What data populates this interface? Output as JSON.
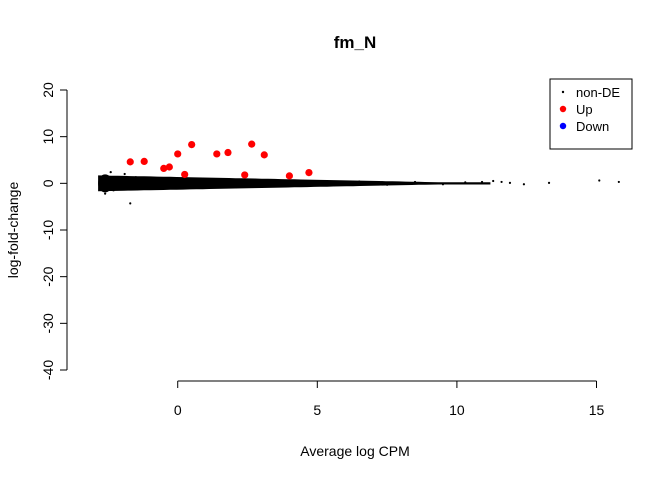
{
  "chart_data": {
    "type": "scatter",
    "title": "fm_N",
    "xlabel": "Average log CPM",
    "ylabel": "log-fold-change",
    "xlim": [
      -3.5,
      16.2
    ],
    "ylim": [
      -40,
      20
    ],
    "xticks": [
      0,
      5,
      10,
      15
    ],
    "yticks": [
      -40,
      -30,
      -20,
      -10,
      0,
      10,
      20
    ],
    "grid": false,
    "legend": {
      "position": "top-right",
      "entries": [
        {
          "label": "non-DE",
          "color": "#000000",
          "marker": "small-dot"
        },
        {
          "label": "Up",
          "color": "#ff0000",
          "marker": "dot"
        },
        {
          "label": "Down",
          "color": "#0000ff",
          "marker": "dot"
        }
      ]
    },
    "series": [
      {
        "name": "non-DE",
        "color": "#000000",
        "points": [
          [
            -2.7,
            0.1
          ],
          [
            -2.6,
            -1.0
          ],
          [
            -2.5,
            1.5
          ],
          [
            -2.6,
            -2.2
          ],
          [
            -2.4,
            2.4
          ],
          [
            -2.3,
            -1.5
          ],
          [
            -2.2,
            1.0
          ],
          [
            -2.1,
            -0.8
          ],
          [
            -1.9,
            2.0
          ],
          [
            -1.7,
            -1.2
          ],
          [
            -1.5,
            1.3
          ],
          [
            -1.3,
            -0.9
          ],
          [
            -1.7,
            -4.3
          ],
          [
            -1.0,
            1.1
          ],
          [
            -0.5,
            -0.7
          ],
          [
            0.5,
            0.8
          ],
          [
            1.5,
            -0.6
          ],
          [
            2.5,
            0.7
          ],
          [
            3.5,
            -0.5
          ],
          [
            4.5,
            0.5
          ],
          [
            5.5,
            -0.4
          ],
          [
            6.5,
            0.4
          ],
          [
            7.5,
            -0.3
          ],
          [
            8.5,
            0.3
          ],
          [
            9.5,
            -0.2
          ],
          [
            10.3,
            0.2
          ],
          [
            10.9,
            0.3
          ],
          [
            11.3,
            0.5
          ],
          [
            11.6,
            0.3
          ],
          [
            11.9,
            0.1
          ],
          [
            12.4,
            -0.2
          ],
          [
            13.3,
            0.1
          ],
          [
            15.1,
            0.6
          ],
          [
            15.8,
            0.3
          ]
        ]
      },
      {
        "name": "Up",
        "color": "#ff0000",
        "points": [
          [
            -1.7,
            4.6
          ],
          [
            -1.2,
            4.7
          ],
          [
            -0.5,
            3.2
          ],
          [
            -0.3,
            3.5
          ],
          [
            0.0,
            6.3
          ],
          [
            0.5,
            8.3
          ],
          [
            0.25,
            1.9
          ],
          [
            1.4,
            6.3
          ],
          [
            1.8,
            6.6
          ],
          [
            2.4,
            1.8
          ],
          [
            2.65,
            8.4
          ],
          [
            3.1,
            6.1
          ],
          [
            4.0,
            1.6
          ],
          [
            4.7,
            2.3
          ]
        ]
      },
      {
        "name": "Down",
        "color": "#0000ff",
        "points": []
      }
    ]
  }
}
